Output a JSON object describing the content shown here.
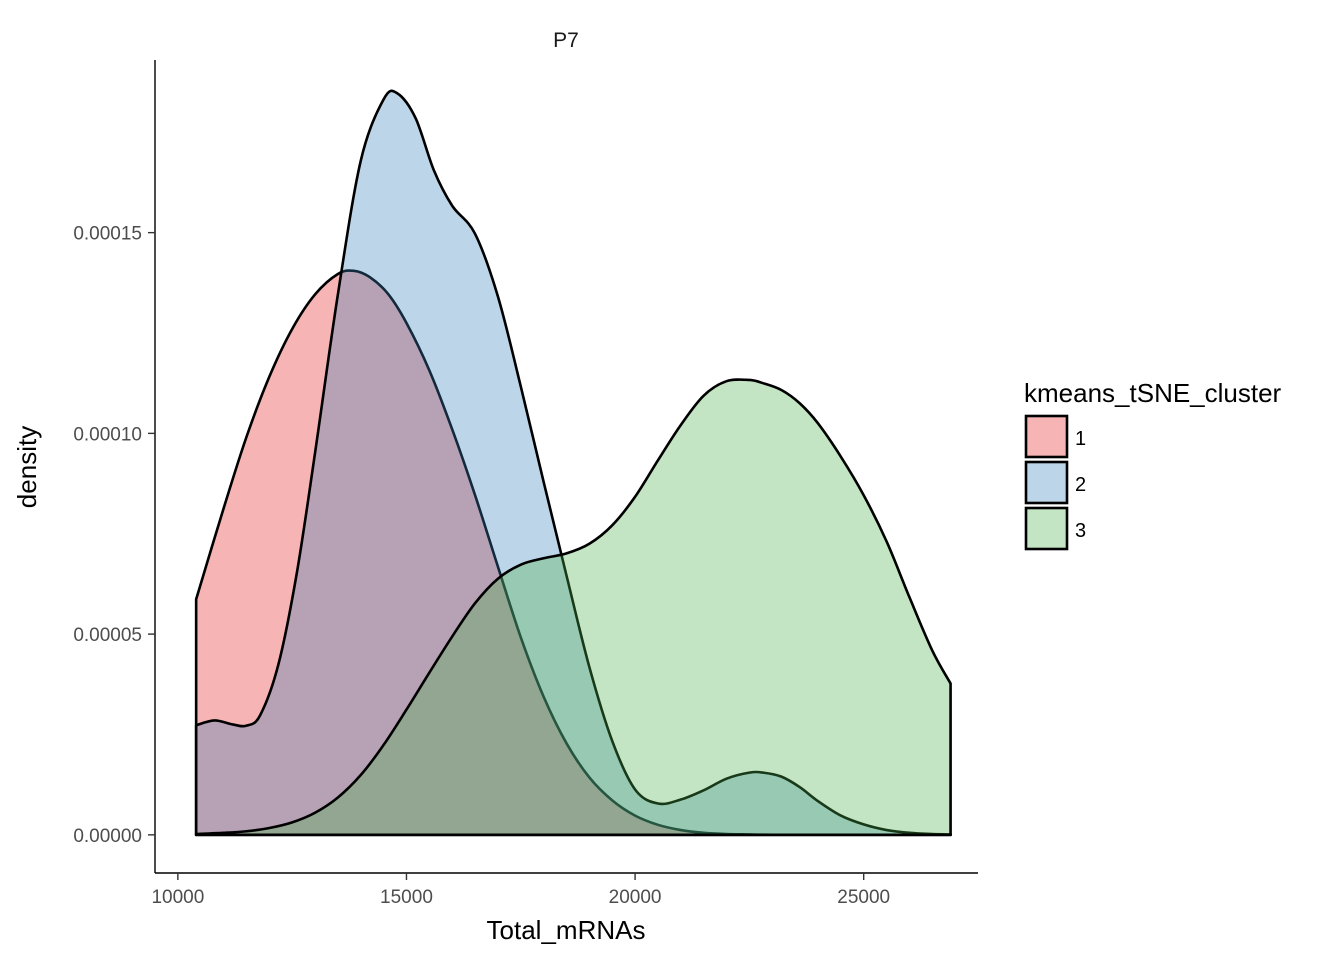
{
  "chart_data": {
    "type": "area",
    "title": "P7",
    "xlabel": "Total_mRNAs",
    "ylabel": "density",
    "xlim": [
      9500,
      27500
    ],
    "ylim": [
      -9.5e-06,
      0.000193
    ],
    "x_ticks": [
      10000,
      15000,
      20000,
      25000
    ],
    "x_tick_labels": [
      "10000",
      "15000",
      "20000",
      "25000"
    ],
    "y_ticks": [
      0,
      5e-05,
      0.0001,
      0.00015
    ],
    "y_tick_labels": [
      "0.00000",
      "0.00005",
      "0.00010",
      "0.00015"
    ],
    "grid": false,
    "legend": {
      "title": "kmeans_tSNE_cluster",
      "position": "right"
    },
    "series": [
      {
        "name": "1",
        "color": "#E41A1C",
        "x": [
          10400,
          11000,
          11500,
          12000,
          12500,
          13000,
          13500,
          13850,
          14200,
          14600,
          15000,
          15500,
          16000,
          16500,
          17000,
          17500,
          18000,
          18500,
          19000,
          19500,
          20000,
          20500,
          21000,
          21500,
          22000,
          22500,
          23000,
          23500,
          24000,
          24500,
          25000,
          25500,
          26000,
          26500,
          26900
        ],
        "y": [
          5.87e-05,
          8.13e-05,
          9.91e-05,
          0.0001141,
          0.000126,
          0.0001346,
          0.0001397,
          0.0001405,
          0.0001389,
          0.0001347,
          0.0001275,
          0.0001157,
          0.000101,
          8.46e-05,
          6.68e-05,
          4.92e-05,
          3.44e-05,
          2.28e-05,
          1.43e-05,
          8.6e-06,
          4.8e-06,
          2.5e-06,
          1.2e-06,
          5e-07,
          2e-07,
          1e-07,
          0,
          0,
          0,
          0,
          0,
          0,
          0,
          0,
          0
        ]
      },
      {
        "name": "2",
        "color": "#377EB8",
        "x": [
          10400,
          10800,
          11200,
          11500,
          11800,
          12200,
          12600,
          13000,
          13500,
          14000,
          14500,
          14800,
          15200,
          15600,
          16000,
          16500,
          17000,
          17500,
          18000,
          18500,
          19000,
          19500,
          20000,
          20500,
          21000,
          21500,
          22000,
          22500,
          22800,
          23200,
          23600,
          24000,
          24500,
          25000,
          25500,
          26000,
          26500,
          26900
        ],
        "y": [
          2.73e-05,
          2.85e-05,
          2.75e-05,
          2.72e-05,
          2.98e-05,
          4.25e-05,
          6.51e-05,
          9.51e-05,
          0.0001346,
          0.0001679,
          0.0001832,
          0.0001847,
          0.0001785,
          0.0001655,
          0.0001567,
          0.0001497,
          0.0001341,
          0.0001117,
          8.79e-05,
          6.46e-05,
          4.18e-05,
          2.34e-05,
          1.13e-05,
          7.8e-06,
          8.8e-06,
          1.11e-05,
          1.4e-05,
          1.55e-05,
          1.55e-05,
          1.45e-05,
          1.19e-05,
          8.4e-06,
          4.8e-06,
          2.6e-06,
          1.2e-06,
          5e-07,
          2e-07,
          1e-07
        ]
      },
      {
        "name": "3",
        "color": "#4DAF4A",
        "x": [
          10400,
          11000,
          11500,
          12000,
          12500,
          13000,
          13500,
          14000,
          14500,
          15000,
          15500,
          16000,
          16500,
          17000,
          17500,
          18000,
          18500,
          19000,
          19500,
          20000,
          20500,
          21000,
          21500,
          22000,
          22500,
          22800,
          23200,
          23600,
          24000,
          24500,
          25000,
          25500,
          26000,
          26500,
          26900
        ],
        "y": [
          2e-07,
          5e-07,
          9e-07,
          1.7e-06,
          3.1e-06,
          5.5e-06,
          9.3e-06,
          1.49e-05,
          2.24e-05,
          3.12e-05,
          4.04e-05,
          4.94e-05,
          5.77e-05,
          6.38e-05,
          6.73e-05,
          6.89e-05,
          7.01e-05,
          7.25e-05,
          7.71e-05,
          8.42e-05,
          9.33e-05,
          0.0001021,
          0.0001094,
          0.000113,
          0.0001133,
          0.0001125,
          0.0001108,
          0.0001075,
          0.0001025,
          9.42e-05,
          8.46e-05,
          7.31e-05,
          5.92e-05,
          4.59e-05,
          3.77e-05
        ]
      }
    ]
  }
}
